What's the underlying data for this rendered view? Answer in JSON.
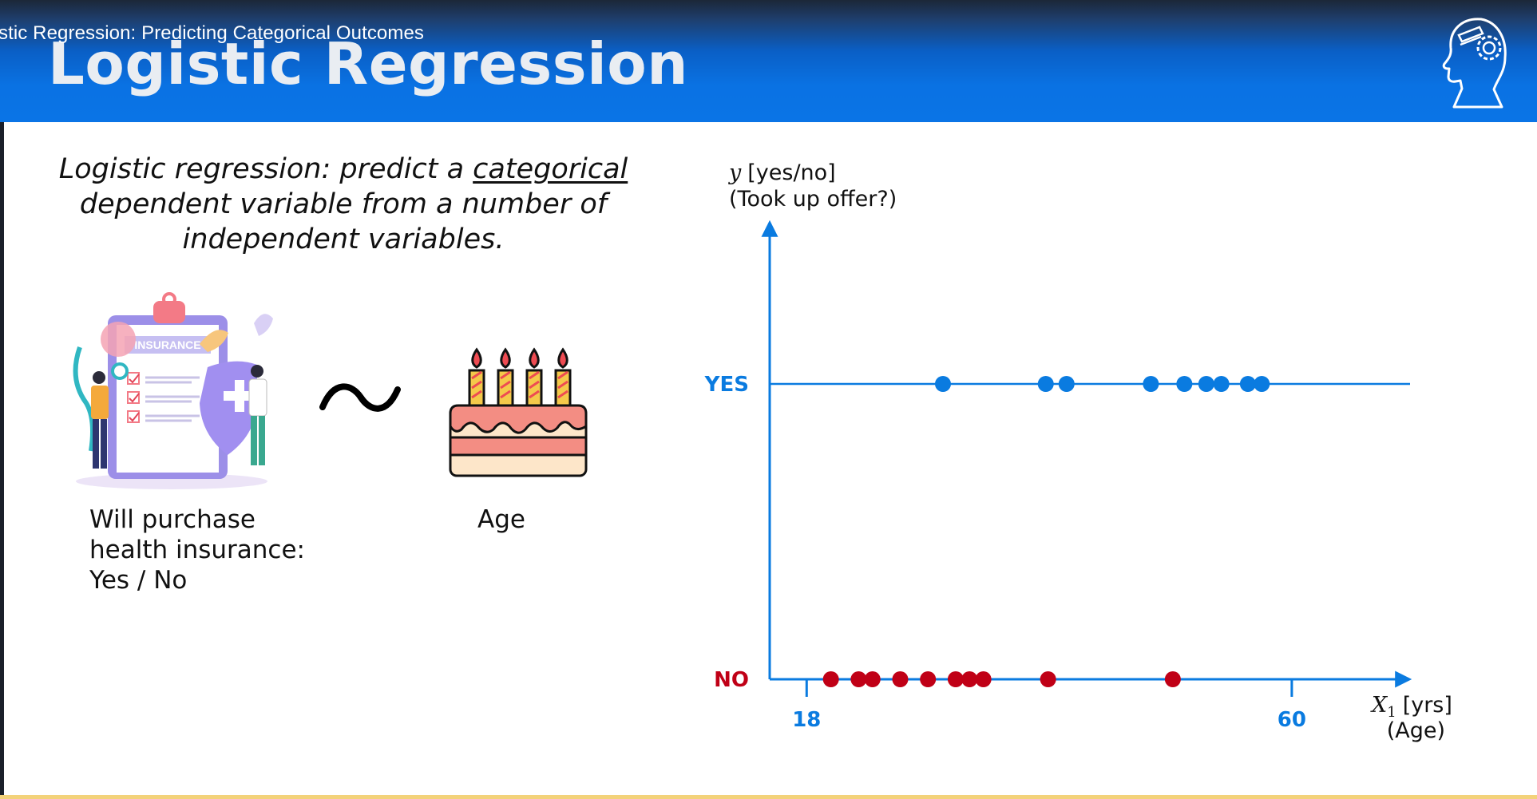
{
  "header": {
    "video_title": "stic Regression: Predicting Categorical Outcomes",
    "slide_title": "Logistic Regression",
    "logo_icon": "head-with-gear-icon"
  },
  "definition": {
    "before": "Logistic regression: predict a ",
    "emphasis": "categorical",
    "after": " dependent variable from a number of independent variables."
  },
  "illustrations": {
    "left_icon": "health-insurance-illustration",
    "left_text": "INSURANCE",
    "relation_symbol": "tilde-icon",
    "right_icon": "birthday-cake-illustration"
  },
  "labels": {
    "outcome_line1": "Will purchase",
    "outcome_line2": "health insurance:",
    "outcome_line3": "Yes / No",
    "predictor": "Age"
  },
  "chart_data": {
    "type": "scatter",
    "ylabel_var": "y",
    "ylabel_unit": "[yes/no]",
    "ylabel_sub": "(Took up offer?)",
    "xlabel_var": "X",
    "xlabel_sub_index": "1",
    "xlabel_unit": "[yrs]",
    "xlabel_sub": "(Age)",
    "y_categories": [
      "NO",
      "YES"
    ],
    "x_ticks": [
      18,
      60
    ],
    "x_tick_labels": [
      "18",
      "60"
    ],
    "xlim": [
      14.8,
      70.1
    ],
    "colors": {
      "yes": "#0a7be0",
      "no": "#c00016",
      "axis": "#0a7be0"
    },
    "series": [
      {
        "name": "YES",
        "y": 1,
        "x": [
          29.8,
          38.7,
          40.5,
          47.8,
          50.7,
          52.6,
          53.9,
          56.2,
          57.4
        ]
      },
      {
        "name": "NO",
        "y": 0,
        "x": [
          20.1,
          22.5,
          23.7,
          26.1,
          28.5,
          30.9,
          32.1,
          33.3,
          38.9,
          49.7
        ]
      }
    ]
  }
}
